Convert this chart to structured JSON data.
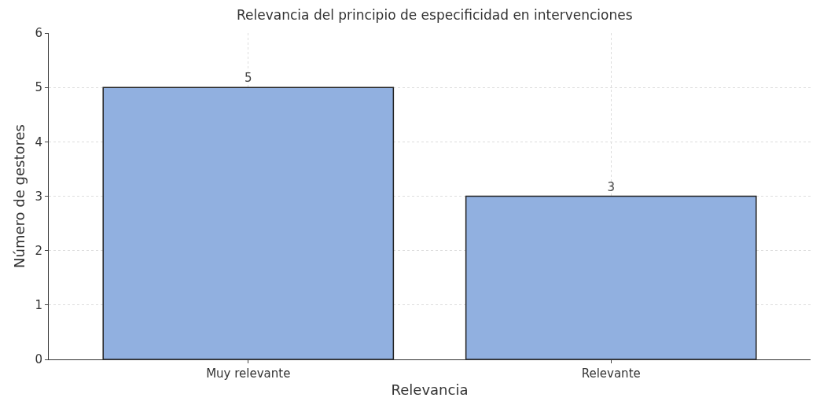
{
  "chart_data": {
    "type": "bar",
    "title": "Relevancia del principio de especificidad en intervenciones",
    "xlabel": "Relevancia",
    "ylabel": "Número de gestores",
    "categories": [
      "Muy relevante",
      "Relevante"
    ],
    "values": [
      5,
      3
    ],
    "color": "#91b0e0",
    "ylim": [
      0,
      6
    ],
    "yticks": [
      0,
      1,
      2,
      3,
      4,
      5,
      6
    ],
    "grid": true,
    "data_labels": true
  }
}
